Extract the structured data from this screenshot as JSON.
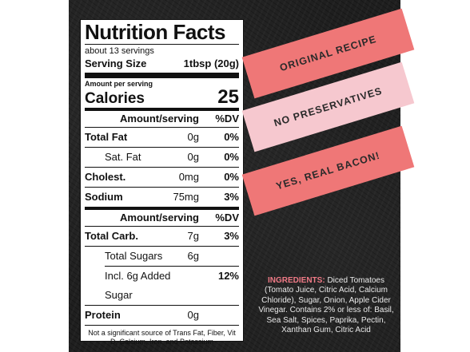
{
  "nutrition": {
    "title": "Nutrition Facts",
    "servings": "about 13 servings",
    "serving_size_label": "Serving Size",
    "serving_size_value": "1tbsp (20g)",
    "amount_per_serving": "Amount per serving",
    "calories_label": "Calories",
    "calories_value": "25",
    "header_amount": "Amount/serving",
    "header_dv": "%DV",
    "rows_a": [
      {
        "name": "Total Fat",
        "amount": "0g",
        "dv": "0%"
      },
      {
        "name": "Sat. Fat",
        "amount": "0g",
        "dv": "0%"
      },
      {
        "name": "Cholest.",
        "amount": "0mg",
        "dv": "0%"
      },
      {
        "name": "Sodium",
        "amount": "75mg",
        "dv": "3%"
      }
    ],
    "rows_b": [
      {
        "name": "Total Carb.",
        "amount": "7g",
        "dv": "3%"
      },
      {
        "name": "Total Sugars",
        "amount": "6g",
        "dv": ""
      },
      {
        "name": "Incl. 6g Added Sugar",
        "amount": "",
        "dv": "12%"
      },
      {
        "name": "Protein",
        "amount": "0g",
        "dv": ""
      }
    ],
    "footnote": "Not a significant source of Trans Fat, Fiber, Vit D, Calcium, Iron, and Potassium"
  },
  "banners": [
    "ORIGINAL RECIPE",
    "NO PRESERVATIVES",
    "YES, REAL BACON!"
  ],
  "ingredients": {
    "label": "INGREDIENTS:",
    "text": "Diced Tomatoes (Tomato Juice, Citric Acid, Calcium Chloride), Sugar, Onion, Apple Cider Vinegar. Contains 2% or less of: Basil, Sea Salt, Spices, Paprika, Pectin, Xanthan Gum, Citric Acid"
  },
  "colors": {
    "background": "#1f1f1f",
    "banner_red": "#ef7777",
    "banner_pink": "#f6c8cf",
    "ingredients_label": "#ef7a86"
  }
}
